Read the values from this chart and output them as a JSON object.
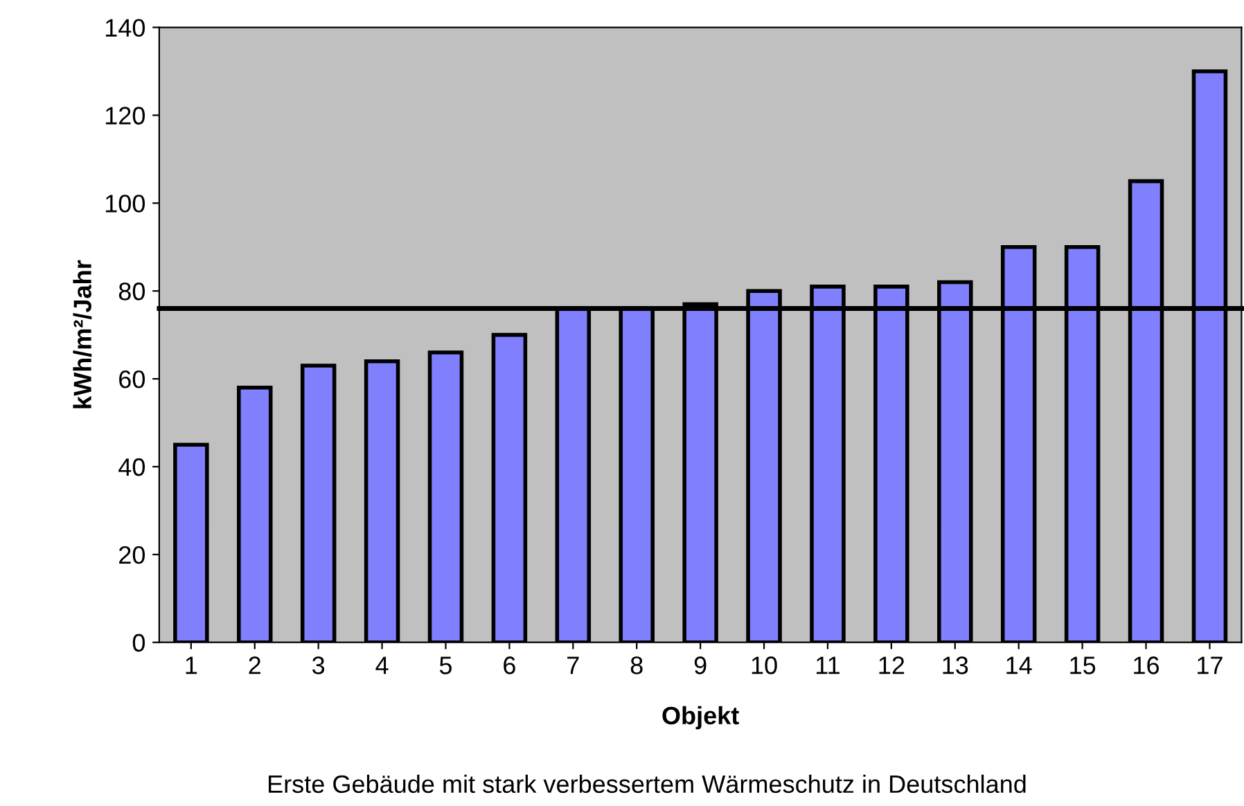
{
  "chart_data": {
    "type": "bar",
    "xlabel": "Objekt",
    "ylabel": "kWh/m²/Jahr",
    "annotations": [
      "Erste Gebäude mit stark verbessertem Wärmeschutz in Deutschland"
    ],
    "categories": [
      "1",
      "2",
      "3",
      "4",
      "5",
      "6",
      "7",
      "8",
      "9",
      "10",
      "11",
      "12",
      "13",
      "14",
      "15",
      "16",
      "17"
    ],
    "values": [
      45,
      58,
      63,
      64,
      66,
      70,
      76,
      76,
      77,
      80,
      81,
      81,
      82,
      90,
      90,
      105,
      130
    ],
    "color": "#8080ff",
    "ylim": [
      0,
      140
    ],
    "yticks": [
      0,
      20,
      40,
      60,
      80,
      100,
      120,
      140
    ],
    "ref_lines": [
      {
        "axis": "y",
        "value": 76,
        "color": "#000000"
      }
    ],
    "grid": false,
    "legend": false
  }
}
